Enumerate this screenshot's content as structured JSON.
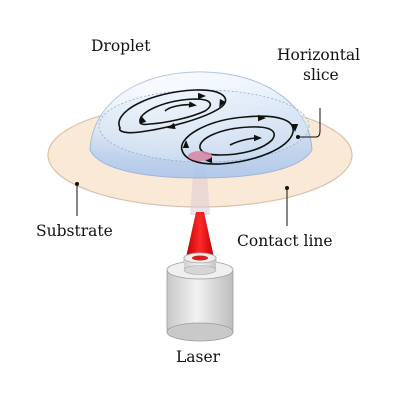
{
  "labels": {
    "droplet": "Droplet",
    "horizontal_slice_line1": "Horizontal",
    "horizontal_slice_line2": "slice",
    "substrate": "Substrate",
    "contact_line": "Contact line",
    "laser": "Laser"
  },
  "colors": {
    "substrate_fill": "#fbe8d6",
    "substrate_stroke": "#d8bfa4",
    "droplet_top": "#eaf3ff",
    "droplet_bottom": "#a9c8ef",
    "droplet_stroke": "#9db7d8",
    "laser_beam": "#e01818",
    "laser_spot": "#d88aa8",
    "laser_body": "#d4d4d4"
  }
}
